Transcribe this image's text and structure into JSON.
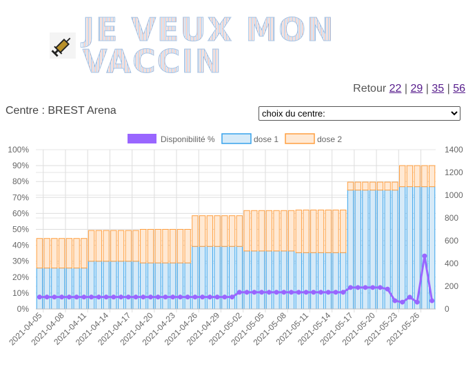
{
  "header": {
    "title": "JE VEUX MON VACCIN",
    "logo_icon": "syringe-icon"
  },
  "nav": {
    "retour_label": "Retour",
    "links": [
      "22",
      "29",
      "35",
      "56"
    ],
    "separator": "|"
  },
  "centre": {
    "label": "Centre : BREST Arena"
  },
  "select": {
    "value": "choix du centre:"
  },
  "chart_data": {
    "type": "bar",
    "stacked": true,
    "legend": [
      "Disponibilité %",
      "dose 1",
      "dose 2"
    ],
    "legend_position": "top",
    "colors": {
      "line": "#9966ff",
      "dose1_fill": "#d6eaf8",
      "dose1_border": "#36a2eb",
      "dose2_fill": "#ffe9d4",
      "dose2_border": "#ff9f40"
    },
    "y_left": {
      "ticks": [
        "0%",
        "10%",
        "20%",
        "30%",
        "40%",
        "50%",
        "60%",
        "70%",
        "80%",
        "90%",
        "100%"
      ],
      "range": [
        0,
        100
      ]
    },
    "y_right": {
      "ticks": [
        "0",
        "200",
        "400",
        "600",
        "800",
        "1000",
        "1200",
        "1400"
      ],
      "range": [
        0,
        1400
      ]
    },
    "start_date": "2021-04-05",
    "x_labels": [
      "2021-04-05",
      "2021-04-08",
      "2021-04-11",
      "2021-04-14",
      "2021-04-17",
      "2021-04-20",
      "2021-04-23",
      "2021-04-26",
      "2021-04-29",
      "2021-05-02",
      "2021-05-05",
      "2021-05-08",
      "2021-05-11",
      "2021-05-14",
      "2021-05-17",
      "2021-05-20",
      "2021-05-23",
      "2021-05-26"
    ],
    "dose1": [
      360,
      360,
      360,
      360,
      360,
      360,
      360,
      420,
      420,
      420,
      420,
      420,
      420,
      420,
      405,
      405,
      405,
      405,
      405,
      405,
      405,
      550,
      550,
      550,
      550,
      550,
      550,
      550,
      510,
      510,
      510,
      510,
      510,
      510,
      510,
      495,
      495,
      495,
      495,
      495,
      495,
      495,
      1045,
      1045,
      1045,
      1045,
      1045,
      1045,
      1045,
      1075,
      1075,
      1075,
      1075,
      1075
    ],
    "dose2": [
      260,
      260,
      260,
      260,
      260,
      260,
      260,
      270,
      270,
      270,
      270,
      270,
      270,
      270,
      295,
      295,
      295,
      295,
      295,
      295,
      295,
      270,
      270,
      270,
      270,
      270,
      270,
      270,
      355,
      355,
      355,
      355,
      355,
      355,
      355,
      375,
      375,
      375,
      375,
      375,
      375,
      375,
      70,
      70,
      70,
      70,
      70,
      70,
      70,
      185,
      185,
      185,
      185,
      185
    ],
    "disponibilite": [
      7.5,
      7.5,
      7.5,
      7.5,
      7.5,
      7.5,
      7.5,
      7.5,
      7.5,
      7.5,
      7.5,
      7.5,
      7.5,
      7.5,
      7.5,
      7.5,
      7.5,
      7.5,
      7.5,
      7.5,
      7.5,
      7.5,
      7.5,
      7.5,
      7.5,
      7.5,
      7.5,
      10.5,
      10.5,
      10.5,
      10.5,
      10.5,
      10.5,
      10.5,
      10.5,
      10.5,
      10.5,
      10.5,
      10.5,
      10.5,
      10.5,
      10.5,
      13.5,
      13.5,
      13.5,
      13.5,
      13.5,
      12.5,
      5.2,
      4.3,
      7.4,
      4.3,
      33.3,
      5.2
    ]
  }
}
